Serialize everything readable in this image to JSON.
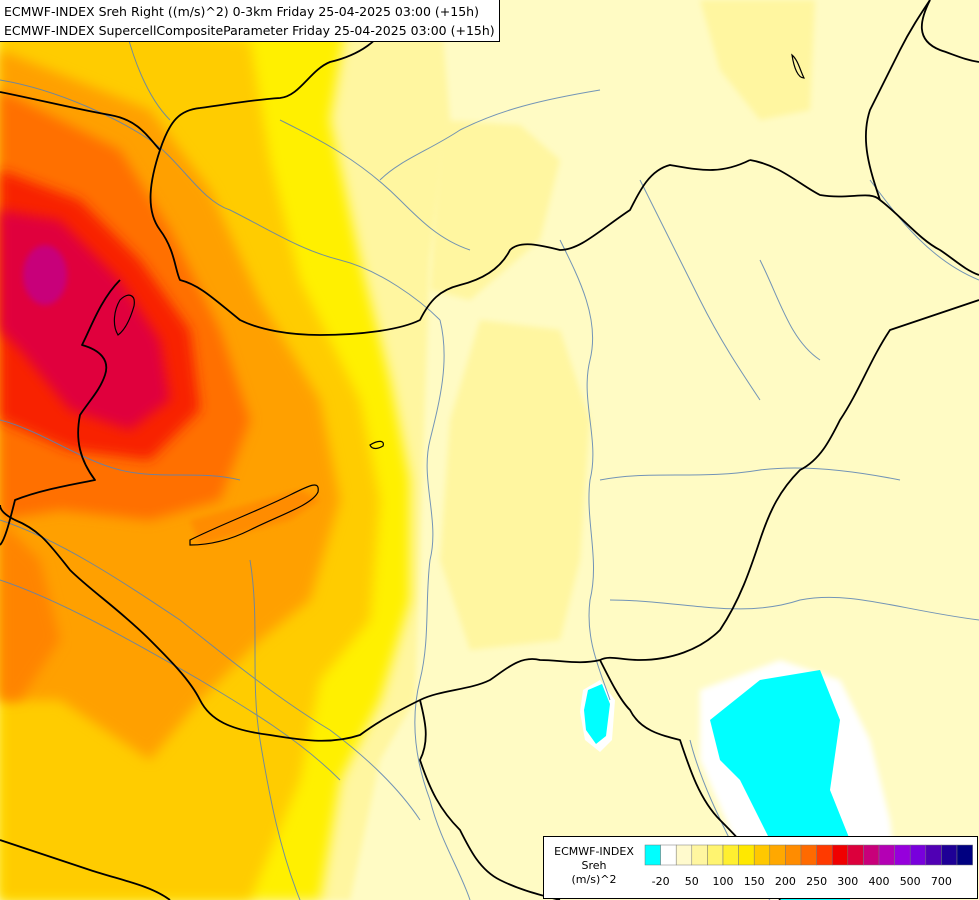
{
  "header": {
    "line1": "ECMWF-INDEX Sreh Right ((m/s)^2) 0-3km Friday 25-04-2025 03:00 (+15h)",
    "line2": "ECMWF-INDEX SupercellCompositeParameter Friday 25-04-2025 03:00 (+15h)"
  },
  "legend": {
    "source": "ECMWF-INDEX",
    "variable": "Sreh",
    "unit": "(m/s)^2",
    "swatches": [
      "#00ffff",
      "#ffffff",
      "#fffacd",
      "#fff6a0",
      "#fff470",
      "#ffef30",
      "#ffe800",
      "#ffc800",
      "#ffa800",
      "#ff8c00",
      "#ff6a00",
      "#ff3a00",
      "#f00000",
      "#dc003c",
      "#c8007a",
      "#b400b4",
      "#9600dc",
      "#7800dc",
      "#5000b4",
      "#1e0096",
      "#000080"
    ],
    "tick_labels": [
      "-20",
      "50",
      "100",
      "150",
      "200",
      "250",
      "300",
      "400",
      "500",
      "700"
    ]
  },
  "colors": {
    "background": "#fffbc4",
    "border_lines": "#000000",
    "rivers": "#5a82b4"
  }
}
